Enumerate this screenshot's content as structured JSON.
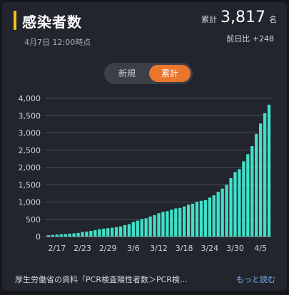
{
  "header": {
    "title": "感染者数",
    "timestamp": "4月7日 12:00時点",
    "total_label": "累計",
    "total_value": "3,817",
    "total_unit": "名",
    "diff_text": "前日比 +248"
  },
  "toggle": {
    "new_label": "新規",
    "cumulative_label": "累計",
    "active": "cumulative"
  },
  "colors": {
    "bar": "#40e0c8",
    "accent": "#f0c419",
    "active_toggle": "#e9762b"
  },
  "footer": {
    "source_text": "厚生労働省の資料「PCR検査陽性者数＞PCR検…",
    "more_label": "もっと読む"
  },
  "chart_data": {
    "type": "bar",
    "title": "",
    "xlabel": "",
    "ylabel": "",
    "ylim": [
      0,
      4000
    ],
    "y_ticks": [
      "0",
      "500",
      "1,000",
      "1,500",
      "2,000",
      "2,500",
      "3,000",
      "3,500",
      "4,000"
    ],
    "x_tick_labels": [
      {
        "category": "2/17",
        "label": "2/17"
      },
      {
        "category": "2/23",
        "label": "2/23"
      },
      {
        "category": "2/29",
        "label": "2/29"
      },
      {
        "category": "3/6",
        "label": "3/6"
      },
      {
        "category": "3/12",
        "label": "3/12"
      },
      {
        "category": "3/18",
        "label": "3/18"
      },
      {
        "category": "3/24",
        "label": "3/24"
      },
      {
        "category": "3/30",
        "label": "3/30"
      },
      {
        "category": "4/5",
        "label": "4/5"
      }
    ],
    "categories": [
      "2/15",
      "2/16",
      "2/17",
      "2/18",
      "2/19",
      "2/20",
      "2/21",
      "2/22",
      "2/23",
      "2/24",
      "2/25",
      "2/26",
      "2/27",
      "2/28",
      "2/29",
      "3/1",
      "3/2",
      "3/3",
      "3/4",
      "3/5",
      "3/6",
      "3/7",
      "3/8",
      "3/9",
      "3/10",
      "3/11",
      "3/12",
      "3/13",
      "3/14",
      "3/15",
      "3/16",
      "3/17",
      "3/18",
      "3/19",
      "3/20",
      "3/21",
      "3/22",
      "3/23",
      "3/24",
      "3/25",
      "3/26",
      "3/27",
      "3/28",
      "3/29",
      "3/30",
      "3/31",
      "4/1",
      "4/2",
      "4/3",
      "4/4",
      "4/5",
      "4/6",
      "4/7"
    ],
    "values": [
      40,
      50,
      59,
      66,
      73,
      85,
      94,
      105,
      132,
      144,
      164,
      186,
      214,
      230,
      241,
      256,
      274,
      293,
      331,
      360,
      420,
      461,
      502,
      530,
      581,
      620,
      675,
      714,
      735,
      781,
      814,
      829,
      873,
      924,
      950,
      1007,
      1035,
      1054,
      1128,
      1193,
      1292,
      1387,
      1499,
      1693,
      1866,
      1953,
      2178,
      2384,
      2617,
      2971,
      3271,
      3569,
      3817
    ],
    "grid": true,
    "legend": "none"
  }
}
